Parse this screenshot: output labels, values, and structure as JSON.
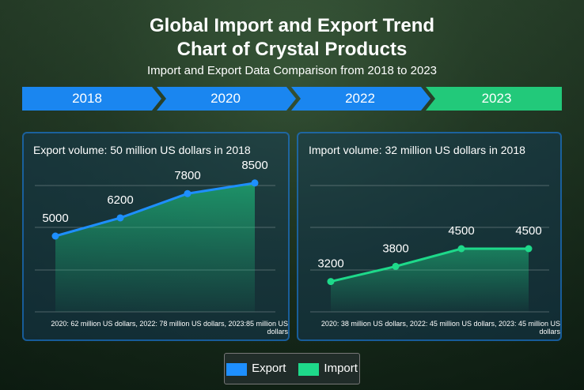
{
  "title_line1": "Global Import and Export Trend",
  "title_line2": "Chart of Crystal Products",
  "subtitle": "Import and Export Data Comparison from 2018 to 2023",
  "timeline": [
    "2018",
    "2020",
    "2022",
    "2023"
  ],
  "colors": {
    "export": "#1e8fff",
    "import": "#1ed98a",
    "timeline_blue": "#1a86f0",
    "timeline_green": "#22c97a"
  },
  "legend": {
    "export": "Export",
    "import": "Import"
  },
  "chart_data": [
    {
      "type": "area",
      "title": "Export volume: 50 million US dollars in 2018",
      "categories": [
        "2018",
        "2020",
        "2022",
        "2023"
      ],
      "values": [
        5000,
        6200,
        7800,
        8500
      ],
      "ylim": [
        0,
        10000
      ],
      "grid": true,
      "note": "2020: 62 million US dollars, 2022: 78 million US dollars, 2023:85 million US dollars"
    },
    {
      "type": "area",
      "title": "Import volume: 32 million US dollars in 2018",
      "categories": [
        "2018",
        "2020",
        "2022",
        "2023"
      ],
      "values": [
        3200,
        3800,
        4500,
        4500
      ],
      "ylim": [
        2000,
        8000
      ],
      "grid": true,
      "note": "2020: 38 million US dollars, 2022: 45 million US dollars, 2023: 45 million US dollars"
    }
  ]
}
